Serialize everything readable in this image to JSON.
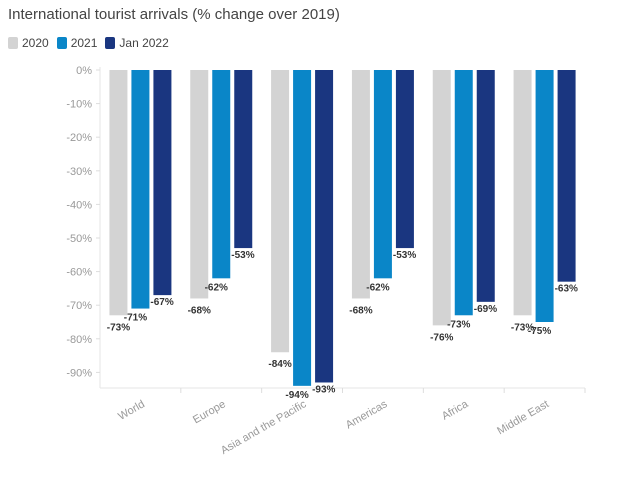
{
  "chart_data": {
    "type": "bar",
    "title": "International tourist arrivals (% change over 2019)",
    "xlabel": "",
    "ylabel": "",
    "ylim": [
      -95,
      0
    ],
    "yticks": [
      0,
      -10,
      -20,
      -30,
      -40,
      -50,
      -60,
      -70,
      -80,
      -90
    ],
    "ytick_labels": [
      "0%",
      "-10%",
      "-20%",
      "-30%",
      "-40%",
      "-50%",
      "-60%",
      "-70%",
      "-80%",
      "-90%"
    ],
    "categories": [
      "World",
      "Europe",
      "Asia and the Pacific",
      "Americas",
      "Africa",
      "Middle East"
    ],
    "series": [
      {
        "name": "2020",
        "color": "#d3d3d3",
        "values": [
          -73,
          -68,
          -84,
          -68,
          -76,
          -73
        ]
      },
      {
        "name": "2021",
        "color": "#0a86c8",
        "values": [
          -71,
          -62,
          -94,
          -62,
          -73,
          -75
        ]
      },
      {
        "name": "Jan 2022",
        "color": "#1a3680",
        "values": [
          -67,
          -53,
          -93,
          -53,
          -69,
          -63
        ]
      }
    ],
    "legend": "top-left",
    "grid": false
  }
}
